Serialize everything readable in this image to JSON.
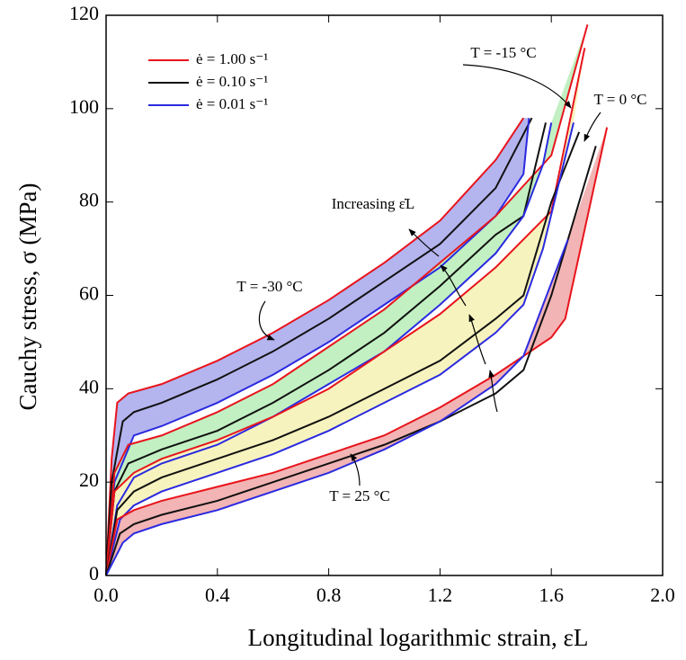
{
  "chart_data": {
    "type": "line",
    "xlabel": "Longitudinal logarithmic strain, εL",
    "ylabel": "Cauchy stress, σ (MPa)",
    "xlim": [
      0,
      2.0
    ],
    "xticks": [
      {
        "value": 0,
        "label": "0.0"
      },
      0.4,
      0.8,
      1.2,
      1.6,
      {
        "value": 2,
        "label": "2.0"
      }
    ],
    "ylim": [
      0,
      120
    ],
    "yticks": [
      0,
      20,
      40,
      60,
      80,
      100,
      120
    ],
    "legend": "upper left",
    "series": [
      {
        "name": "ė = 1.00 s⁻¹",
        "color": "#e8141c"
      },
      {
        "name": "ė = 0.10 s⁻¹",
        "color": "#111111"
      },
      {
        "name": "ė = 0.01 s⁻¹",
        "color": "#2a2ae0"
      }
    ],
    "annotations": [
      "Increasing ε̇L"
    ],
    "groups": [
      {
        "label": "T = -30 °C",
        "fill": "#b4b4ee",
        "curves": [
          {
            "x": [
              0,
              0.02,
              0.04,
              0.08,
              0.2,
              0.4,
              0.6,
              0.8,
              1.0,
              1.2,
              1.4,
              1.5
            ],
            "values": [
              0,
              25,
              37,
              39,
              41,
              46,
              52,
              59,
              67,
              76,
              89,
              98
            ]
          },
          {
            "x": [
              0,
              0.02,
              0.06,
              0.1,
              0.2,
              0.4,
              0.6,
              0.8,
              1.0,
              1.2,
              1.4,
              1.53
            ],
            "values": [
              0,
              20,
              33,
              35,
              37,
              42,
              48,
              55,
              63,
              71,
              83,
              98
            ]
          },
          {
            "x": [
              0,
              0.03,
              0.1,
              0.2,
              0.4,
              0.6,
              0.8,
              1.0,
              1.2,
              1.4,
              1.5,
              1.52
            ],
            "values": [
              0,
              20,
              30,
              32,
              37,
              43,
              50,
              58,
              66,
              77,
              86,
              98
            ]
          }
        ]
      },
      {
        "label": "T = -15 °C",
        "fill": "#c2f0c2",
        "curves": [
          {
            "x": [
              0,
              0.03,
              0.08,
              0.2,
              0.4,
              0.6,
              0.8,
              1.0,
              1.2,
              1.4,
              1.6,
              1.73
            ],
            "values": [
              0,
              22,
              28,
              30,
              35,
              41,
              49,
              57,
              67,
              77,
              90,
              118
            ]
          },
          {
            "x": [
              0,
              0.03,
              0.08,
              0.2,
              0.4,
              0.6,
              0.8,
              1.0,
              1.2,
              1.4,
              1.5,
              1.58
            ],
            "values": [
              0,
              18,
              24,
              27,
              31,
              37,
              44,
              52,
              62,
              73,
              77,
              97
            ]
          },
          {
            "x": [
              0,
              0.04,
              0.1,
              0.2,
              0.4,
              0.6,
              0.8,
              1.0,
              1.2,
              1.4,
              1.5,
              1.57,
              1.6
            ],
            "values": [
              0,
              15,
              21,
              24,
              28,
              34,
              41,
              48,
              58,
              69,
              77,
              88,
              97
            ]
          }
        ]
      },
      {
        "label": "T = 0 °C",
        "fill": "#f7f3be",
        "curves": [
          {
            "x": [
              0,
              0.03,
              0.1,
              0.2,
              0.4,
              0.6,
              0.8,
              1.0,
              1.2,
              1.4,
              1.6,
              1.72
            ],
            "values": [
              0,
              18,
              22,
              25,
              29,
              34,
              40,
              48,
              56,
              66,
              78,
              113
            ]
          },
          {
            "x": [
              0,
              0.04,
              0.1,
              0.2,
              0.4,
              0.6,
              0.8,
              1.0,
              1.2,
              1.4,
              1.5,
              1.6,
              1.7
            ],
            "values": [
              0,
              14,
              18,
              21,
              25,
              29,
              34,
              40,
              46,
              55,
              60,
              80,
              95
            ]
          },
          {
            "x": [
              0,
              0.05,
              0.1,
              0.2,
              0.4,
              0.6,
              0.8,
              1.0,
              1.2,
              1.4,
              1.5,
              1.57,
              1.68
            ],
            "values": [
              0,
              12,
              15,
              18,
              22,
              26,
              31,
              37,
              43,
              52,
              58,
              70,
              97
            ]
          }
        ]
      },
      {
        "label": "T = 25 °C",
        "fill": "#f2b4b4",
        "curves": [
          {
            "x": [
              0,
              0.04,
              0.1,
              0.2,
              0.4,
              0.6,
              0.8,
              1.0,
              1.2,
              1.4,
              1.6,
              1.65,
              1.8
            ],
            "values": [
              0,
              12,
              14,
              16,
              19,
              22,
              26,
              30,
              36,
              43,
              51,
              55,
              96
            ]
          },
          {
            "x": [
              0,
              0.05,
              0.1,
              0.2,
              0.4,
              0.6,
              0.8,
              1.0,
              1.2,
              1.4,
              1.5,
              1.6,
              1.76
            ],
            "values": [
              0,
              9,
              11,
              13,
              16,
              20,
              24,
              28,
              33,
              39,
              44,
              60,
              92
            ]
          },
          {
            "x": [
              0,
              0.06,
              0.1,
              0.2,
              0.4,
              0.6,
              0.8,
              1.0,
              1.2,
              1.4,
              1.5,
              1.66
            ],
            "values": [
              0,
              7,
              9,
              11,
              14,
              18,
              22,
              27,
              33,
              41,
              47,
              72
            ]
          }
        ]
      }
    ]
  }
}
